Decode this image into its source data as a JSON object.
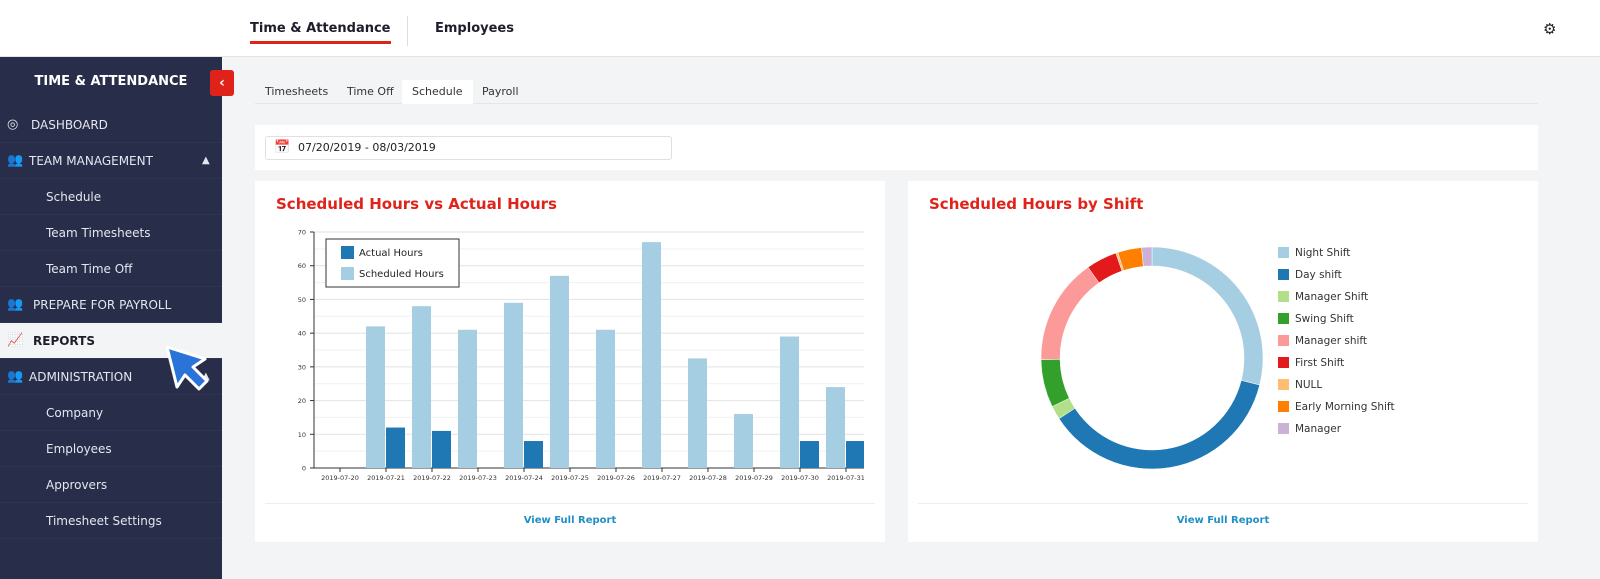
{
  "topbar": {
    "tabs": [
      {
        "label": "Time & Attendance",
        "active": true
      },
      {
        "label": "Employees",
        "active": false
      }
    ],
    "settings_icon": "gear-icon"
  },
  "sidebar": {
    "title": "TIME & ATTENDANCE",
    "collapse_icon": "chevron-left-icon",
    "items": [
      {
        "label": "DASHBOARD",
        "icon": "dashboard-icon"
      },
      {
        "label": "TEAM MANAGEMENT",
        "icon": "team-icon",
        "expanded": true
      },
      {
        "label": "Schedule"
      },
      {
        "label": "Team Timesheets"
      },
      {
        "label": "Team Time Off"
      },
      {
        "label": "PREPARE FOR PAYROLL",
        "icon": "payroll-icon"
      },
      {
        "label": "REPORTS",
        "icon": "reports-icon",
        "active": true
      },
      {
        "label": "ADMINISTRATION",
        "icon": "admin-icon",
        "expanded": true
      },
      {
        "label": "Company"
      },
      {
        "label": "Employees"
      },
      {
        "label": "Approvers"
      },
      {
        "label": "Timesheet Settings"
      }
    ]
  },
  "subtabs": [
    {
      "label": "Timesheets"
    },
    {
      "label": "Time Off"
    },
    {
      "label": "Schedule",
      "active": true
    },
    {
      "label": "Payroll"
    }
  ],
  "date_range": "07/20/2019 - 08/03/2019",
  "cards": [
    {
      "title": "Scheduled Hours vs Actual Hours",
      "link": "View Full Report"
    },
    {
      "title": "Scheduled Hours by Shift",
      "link": "View Full Report"
    }
  ],
  "chart_data": [
    {
      "type": "bar",
      "title": "Scheduled Hours vs Actual Hours",
      "categories": [
        "2019-07-20",
        "2019-07-21",
        "2019-07-22",
        "2019-07-23",
        "2019-07-24",
        "2019-07-25",
        "2019-07-26",
        "2019-07-27",
        "2019-07-28",
        "2019-07-29",
        "2019-07-30",
        "2019-07-31"
      ],
      "series": [
        {
          "name": "Actual Hours",
          "color": "#1f78b4",
          "values": [
            0,
            12,
            11,
            0,
            8,
            0,
            0,
            0,
            0,
            0,
            8,
            8
          ]
        },
        {
          "name": "Scheduled Hours",
          "color": "#a6cee3",
          "values": [
            0,
            42,
            48,
            41,
            49,
            57,
            41,
            67,
            32.5,
            16,
            39,
            24
          ]
        }
      ],
      "ylim": [
        0,
        70
      ],
      "yticks": [
        0,
        10,
        20,
        30,
        40,
        50,
        60,
        70
      ],
      "grid": true,
      "legend": "top-left"
    },
    {
      "type": "pie",
      "donut": true,
      "title": "Scheduled Hours by Shift",
      "legend": "right",
      "slices": [
        {
          "name": "Night Shift",
          "value": 29,
          "color": "#a6cee3"
        },
        {
          "name": "Day shift",
          "value": 37,
          "color": "#1f78b4"
        },
        {
          "name": "Manager Shift",
          "value": 2,
          "color": "#b2df8a"
        },
        {
          "name": "Swing Shift",
          "value": 7,
          "color": "#33a02c"
        },
        {
          "name": "Manager shift",
          "value": 15.5,
          "color": "#fb9a99"
        },
        {
          "name": "First Shift",
          "value": 4.5,
          "color": "#e31a1c"
        },
        {
          "name": "NULL",
          "value": 0.3,
          "color": "#fdbf6f"
        },
        {
          "name": "Early Morning Shift",
          "value": 3.5,
          "color": "#ff7f00"
        },
        {
          "name": "Manager",
          "value": 1.5,
          "color": "#cab2d6"
        }
      ]
    }
  ]
}
